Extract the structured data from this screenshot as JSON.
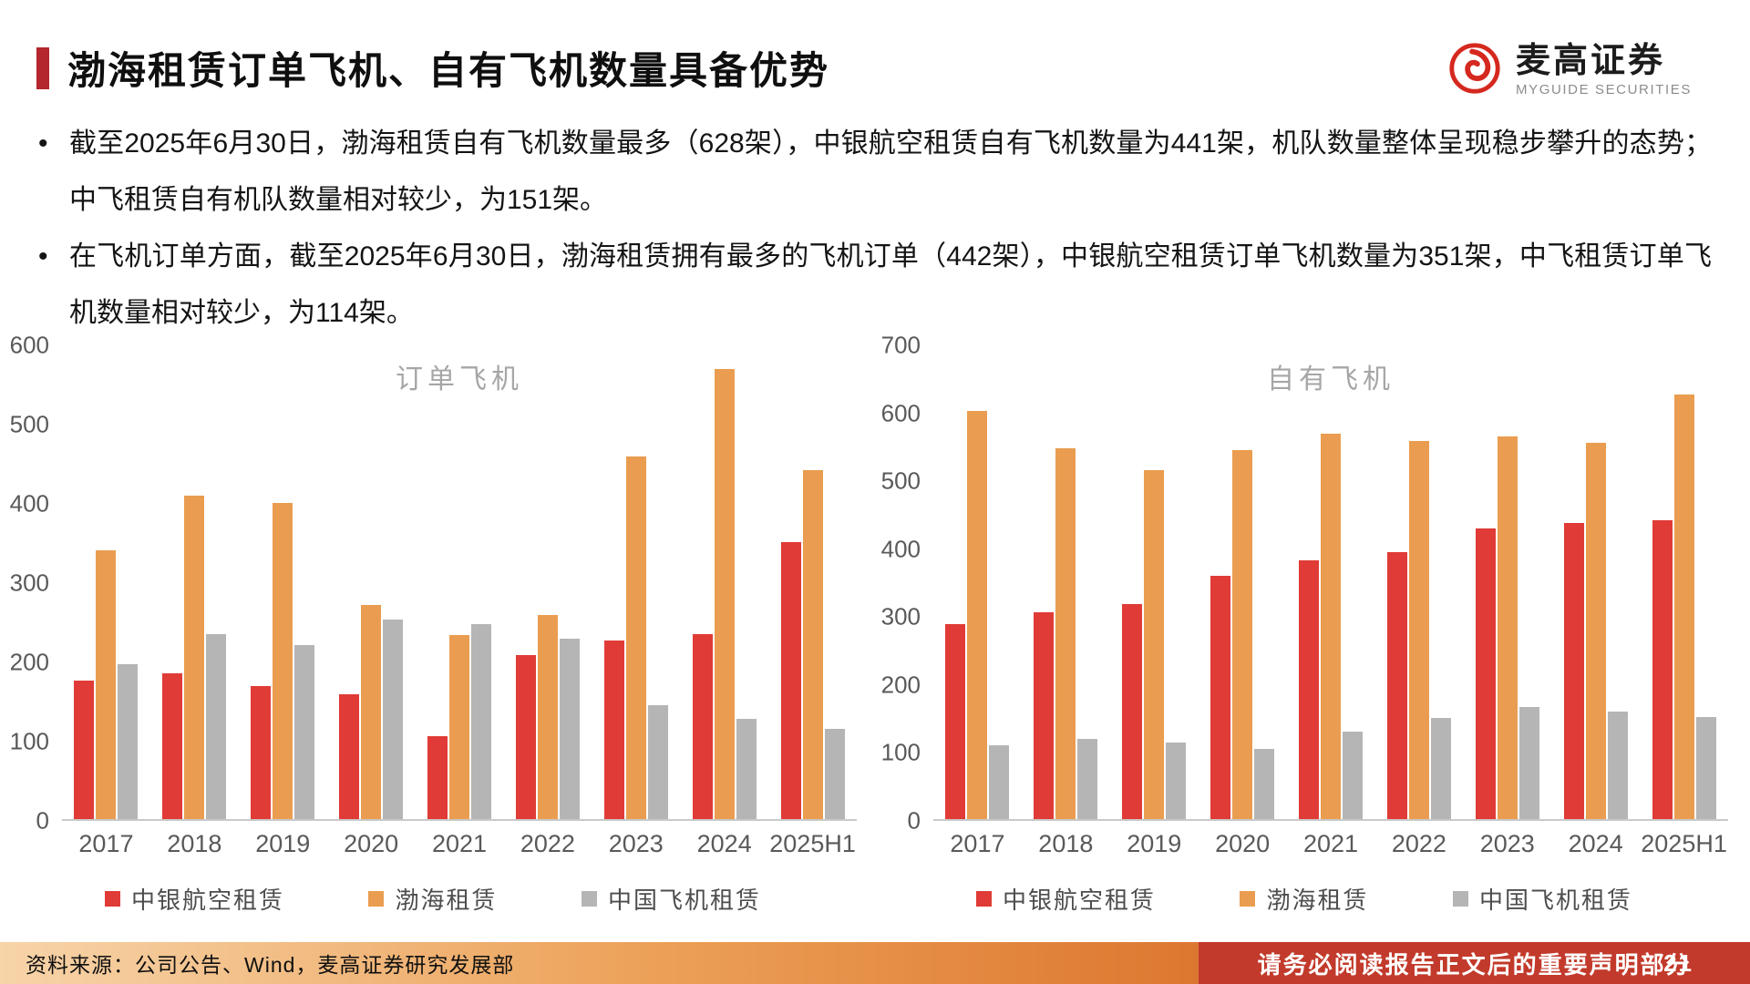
{
  "header": {
    "title": "渤海租赁订单飞机、自有飞机数量具备优势",
    "logo_cn": "麦高证券",
    "logo_en": "MYGUIDE SECURITIES"
  },
  "bullets": [
    "截至2025年6月30日，渤海租赁自有飞机数量最多（628架），中银航空租赁自有飞机数量为441架，机队数量整体呈现稳步攀升的态势；中飞租赁自有机队数量相对较少，为151架。",
    "在飞机订单方面，截至2025年6月30日，渤海租赁拥有最多的飞机订单（442架），中银航空租赁订单飞机数量为351架，中飞租赁订单飞机数量相对较少，为114架。"
  ],
  "colors": {
    "accent_red": "#B3272D",
    "bar_red": "#E03B36",
    "bar_orange": "#EA9D50",
    "bar_gray": "#B5B5B5",
    "footer_red": "#C23A2B",
    "logo_red": "#D5281E"
  },
  "chart_data": [
    {
      "type": "bar",
      "title": "订单飞机",
      "categories": [
        "2017",
        "2018",
        "2019",
        "2020",
        "2021",
        "2022",
        "2023",
        "2024",
        "2025H1"
      ],
      "ylim": [
        0,
        600
      ],
      "yticks": [
        0,
        100,
        200,
        300,
        400,
        500,
        600
      ],
      "grid": false,
      "legend_position": "bottom",
      "series": [
        {
          "name": "中银航空租赁",
          "color": "#E03B36",
          "values": [
            175,
            185,
            168,
            158,
            105,
            208,
            226,
            234,
            351
          ]
        },
        {
          "name": "渤海租赁",
          "color": "#EA9D50",
          "values": [
            340,
            410,
            400,
            271,
            233,
            259,
            459,
            570,
            442
          ]
        },
        {
          "name": "中国飞机租赁",
          "color": "#B5B5B5",
          "values": [
            196,
            234,
            220,
            253,
            247,
            229,
            144,
            127,
            114
          ]
        }
      ]
    },
    {
      "type": "bar",
      "title": "自有飞机",
      "categories": [
        "2017",
        "2018",
        "2019",
        "2020",
        "2021",
        "2022",
        "2023",
        "2024",
        "2025H1"
      ],
      "ylim": [
        0,
        700
      ],
      "yticks": [
        0,
        100,
        200,
        300,
        400,
        500,
        600,
        700
      ],
      "grid": false,
      "legend_position": "bottom",
      "series": [
        {
          "name": "中银航空租赁",
          "color": "#E03B36",
          "values": [
            288,
            305,
            318,
            360,
            383,
            394,
            430,
            438,
            441
          ]
        },
        {
          "name": "渤海租赁",
          "color": "#EA9D50",
          "values": [
            603,
            548,
            516,
            545,
            570,
            559,
            565,
            556,
            628
          ]
        },
        {
          "name": "中国飞机租赁",
          "color": "#B5B5B5",
          "values": [
            109,
            118,
            113,
            104,
            129,
            150,
            165,
            159,
            151
          ]
        }
      ]
    }
  ],
  "footer": {
    "source": "资料来源：公司公告、Wind，麦高证券研究发展部",
    "disclaimer": "请务必阅读报告正文后的重要声明部分",
    "page": "21"
  }
}
